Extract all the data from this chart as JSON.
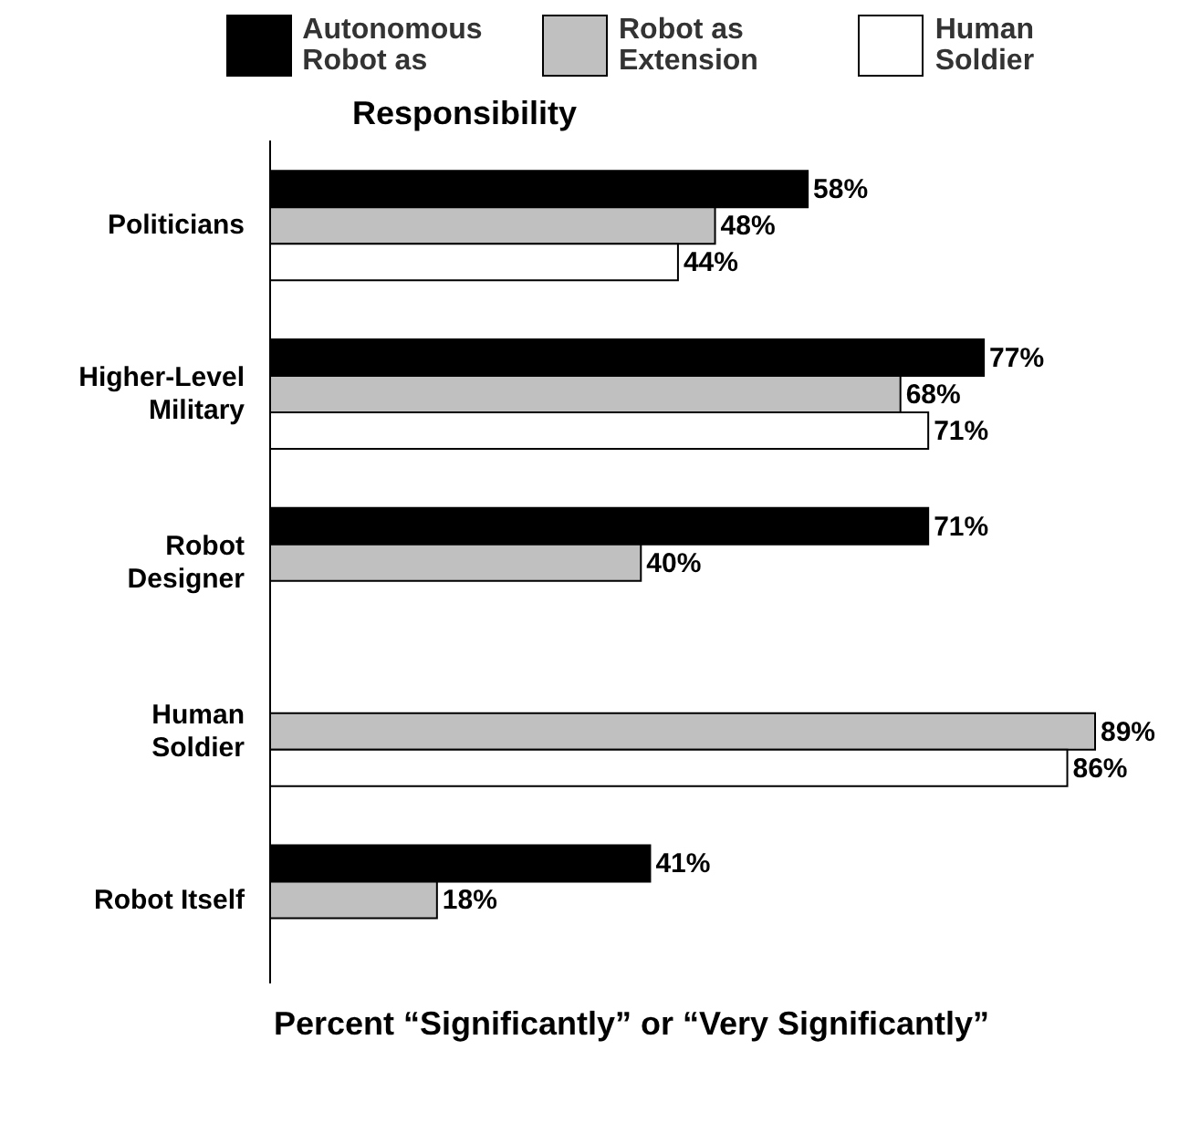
{
  "chart_data": {
    "type": "bar",
    "orientation": "horizontal",
    "title": "Responsibility",
    "xlabel": "Percent “Significantly” or “Very Significantly”",
    "legend": "top",
    "categories": [
      "Politicians",
      "Higher-Level Military",
      "Robot Designer",
      "Human Soldier",
      "Robot Itself"
    ],
    "series": [
      {
        "name": "Autonomous Robot as",
        "color": "#000000",
        "values": [
          58,
          77,
          71,
          null,
          41
        ],
        "value_labels": [
          "58%",
          "77%",
          "71%",
          null,
          "41%"
        ]
      },
      {
        "name": "Robot as Extension",
        "color": "#c0c0c0",
        "values": [
          48,
          68,
          40,
          89,
          18
        ],
        "value_labels": [
          "48%",
          "68%",
          "40%",
          "89%",
          "18%"
        ]
      },
      {
        "name": "Human Soldier",
        "color": "#ffffff",
        "values": [
          44,
          71,
          null,
          86,
          null
        ],
        "value_labels": [
          "44%",
          "71%",
          null,
          "86%",
          null
        ]
      }
    ]
  }
}
